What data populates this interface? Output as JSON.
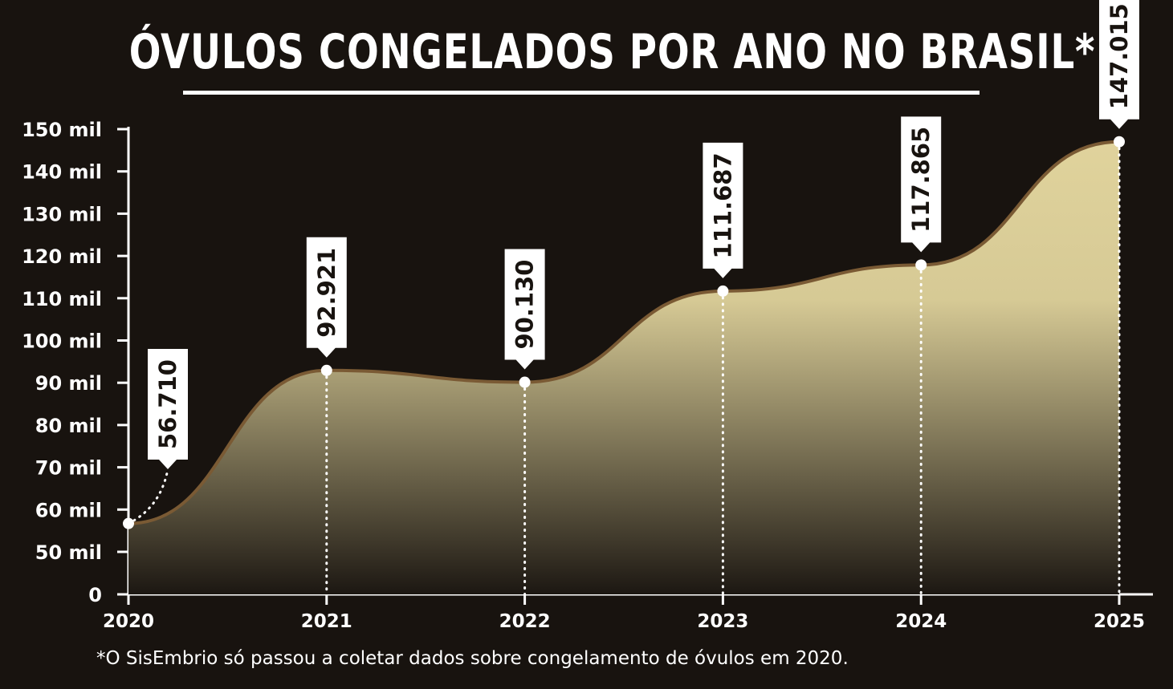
{
  "title": "ÓVULOS CONGELADOS POR ANO NO BRASIL*",
  "footnote": "*O SisEmbrio só passou a coletar dados sobre congelamento de óvulos em 2020.",
  "colors": {
    "background": "#18130f",
    "area_top": "#e0d39c",
    "area_bottom": "#1c1712",
    "line": "#7a5a34",
    "label_box": "#ffffff",
    "text": "#ffffff"
  },
  "chart_data": {
    "type": "area",
    "title": "ÓVULOS CONGELADOS POR ANO NO BRASIL*",
    "xlabel": "",
    "ylabel": "",
    "categories": [
      "2020",
      "2021",
      "2022",
      "2023",
      "2024",
      "2025"
    ],
    "values": [
      56710,
      92921,
      90130,
      111687,
      117865,
      147015
    ],
    "data_labels": [
      "56.710",
      "92.921",
      "90.130",
      "111.687",
      "117.865",
      "147.015"
    ],
    "y_ticks": [
      0,
      50000,
      60000,
      70000,
      80000,
      90000,
      100000,
      110000,
      120000,
      130000,
      140000,
      150000
    ],
    "y_tick_labels": [
      "0",
      "50 mil",
      "60 mil",
      "70 mil",
      "80 mil",
      "90 mil",
      "100 mil",
      "110 mil",
      "120 mil",
      "130 mil",
      "140 mil",
      "150 mil"
    ],
    "ylim": [
      0,
      150000
    ],
    "grid": false,
    "legend": "none"
  }
}
